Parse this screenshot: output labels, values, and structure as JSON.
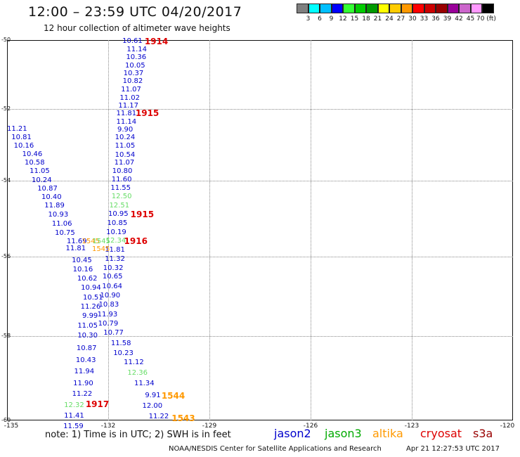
{
  "header": {
    "title": "12:00 – 23:59 UTC 04/20/2017",
    "subtitle": "12 hour collection of altimeter wave heights"
  },
  "colorbar": {
    "colors": [
      "#7f7f7f",
      "#00ffff",
      "#00bfff",
      "#0000ff",
      "#33ff33",
      "#00cc00",
      "#009900",
      "#ffff00",
      "#ffcc00",
      "#ff9900",
      "#ff0000",
      "#cc0000",
      "#990000",
      "#990099",
      "#cc66cc",
      "#ff99ff",
      "#000000"
    ],
    "labels": [
      "3",
      "6",
      "9",
      "12",
      "15",
      "18",
      "21",
      "24",
      "27",
      "30",
      "33",
      "36",
      "39",
      "42",
      "45",
      "70 (ft)"
    ]
  },
  "map": {
    "lat_labels": [
      "-50",
      "-52",
      "-54",
      "-56",
      "-58",
      "-60"
    ],
    "lon_labels": [
      "-135",
      "-132",
      "-129",
      "-126",
      "-123",
      "-120"
    ],
    "observations": [
      {
        "text": "10.61",
        "lon": -131.58,
        "lat": -50.05,
        "color": "#0000cc"
      },
      {
        "text": "11.14",
        "lon": -131.45,
        "lat": -50.3,
        "color": "#0000cc"
      },
      {
        "text": "10.36",
        "lon": -131.47,
        "lat": -50.52,
        "color": "#0000cc"
      },
      {
        "text": "10.05",
        "lon": -131.5,
        "lat": -50.77,
        "color": "#0000cc"
      },
      {
        "text": "10.37",
        "lon": -131.55,
        "lat": -51.0,
        "color": "#0000cc"
      },
      {
        "text": "10.82",
        "lon": -131.57,
        "lat": -51.22,
        "color": "#0000cc"
      },
      {
        "text": "11.07",
        "lon": -131.62,
        "lat": -51.45,
        "color": "#0000cc"
      },
      {
        "text": "11.02",
        "lon": -131.66,
        "lat": -51.69,
        "color": "#0000cc"
      },
      {
        "text": "11.17",
        "lon": -131.7,
        "lat": -51.92,
        "color": "#0000cc"
      },
      {
        "text": "11.81",
        "lon": -131.76,
        "lat": -52.13,
        "color": "#0000cc"
      },
      {
        "text": "11.14",
        "lon": -131.76,
        "lat": -52.37,
        "color": "#0000cc"
      },
      {
        "text": "9.90",
        "lon": -131.73,
        "lat": -52.6,
        "color": "#0000cc"
      },
      {
        "text": "10.24",
        "lon": -131.8,
        "lat": -52.82,
        "color": "#0000cc"
      },
      {
        "text": "11.05",
        "lon": -131.8,
        "lat": -53.05,
        "color": "#0000cc"
      },
      {
        "text": "10.54",
        "lon": -131.8,
        "lat": -53.29,
        "color": "#0000cc"
      },
      {
        "text": "11.07",
        "lon": -131.82,
        "lat": -53.52,
        "color": "#0000cc"
      },
      {
        "text": "10.80",
        "lon": -131.88,
        "lat": -53.75,
        "color": "#0000cc"
      },
      {
        "text": "11.60",
        "lon": -131.9,
        "lat": -53.97,
        "color": "#0000cc"
      },
      {
        "text": "11.55",
        "lon": -131.93,
        "lat": -54.2,
        "color": "#0000cc"
      },
      {
        "text": "12.50",
        "lon": -131.9,
        "lat": -54.43,
        "color": "#66dd66"
      },
      {
        "text": "12.51",
        "lon": -131.97,
        "lat": -54.68,
        "color": "#66dd66"
      },
      {
        "text": "10.95",
        "lon": -132.0,
        "lat": -54.9,
        "color": "#0000cc"
      },
      {
        "text": "10.85",
        "lon": -132.03,
        "lat": -55.13,
        "color": "#0000cc"
      },
      {
        "text": "10.19",
        "lon": -132.06,
        "lat": -55.37,
        "color": "#0000cc"
      },
      {
        "text": "12.34",
        "lon": -132.07,
        "lat": -55.6,
        "color": "#66dd66"
      },
      {
        "text": "11.81",
        "lon": -132.1,
        "lat": -55.84,
        "color": "#0000cc"
      },
      {
        "text": "11.32",
        "lon": -132.1,
        "lat": -56.07,
        "color": "#0000cc"
      },
      {
        "text": "10.32",
        "lon": -132.15,
        "lat": -56.31,
        "color": "#0000cc"
      },
      {
        "text": "10.65",
        "lon": -132.17,
        "lat": -56.53,
        "color": "#0000cc"
      },
      {
        "text": "10.64",
        "lon": -132.18,
        "lat": -56.77,
        "color": "#0000cc"
      },
      {
        "text": "10.90",
        "lon": -132.24,
        "lat": -57.0,
        "color": "#0000cc"
      },
      {
        "text": "10.83",
        "lon": -132.28,
        "lat": -57.23,
        "color": "#0000cc"
      },
      {
        "text": "11.93",
        "lon": -132.32,
        "lat": -57.47,
        "color": "#0000cc"
      },
      {
        "text": "10.79",
        "lon": -132.3,
        "lat": -57.7,
        "color": "#0000cc"
      },
      {
        "text": "10.77",
        "lon": -132.14,
        "lat": -57.93,
        "color": "#0000cc"
      },
      {
        "text": "11.58",
        "lon": -131.92,
        "lat": -58.19,
        "color": "#0000cc"
      },
      {
        "text": "10.23",
        "lon": -131.85,
        "lat": -58.42,
        "color": "#0000cc"
      },
      {
        "text": "11.12",
        "lon": -131.54,
        "lat": -58.65,
        "color": "#0000cc"
      },
      {
        "text": "12.36",
        "lon": -131.43,
        "lat": -58.9,
        "color": "#66dd66"
      },
      {
        "text": "11.34",
        "lon": -131.23,
        "lat": -59.15,
        "color": "#0000cc"
      },
      {
        "text": "9.91",
        "lon": -130.91,
        "lat": -59.43,
        "color": "#0000cc"
      },
      {
        "text": "12.00",
        "lon": -130.99,
        "lat": -59.67,
        "color": "#0000cc"
      },
      {
        "text": "11.22",
        "lon": -130.8,
        "lat": -59.92,
        "color": "#0000cc"
      },
      {
        "text": "11.21",
        "lon": -135.0,
        "lat": -52.58,
        "color": "#0000cc"
      },
      {
        "text": "10.81",
        "lon": -134.87,
        "lat": -52.82,
        "color": "#0000cc"
      },
      {
        "text": "10.16",
        "lon": -134.8,
        "lat": -53.05,
        "color": "#0000cc"
      },
      {
        "text": "10.46",
        "lon": -134.55,
        "lat": -53.28,
        "color": "#0000cc"
      },
      {
        "text": "10.58",
        "lon": -134.48,
        "lat": -53.52,
        "color": "#0000cc"
      },
      {
        "text": "11.05",
        "lon": -134.33,
        "lat": -53.75,
        "color": "#0000cc"
      },
      {
        "text": "10.24",
        "lon": -134.27,
        "lat": -54.0,
        "color": "#0000cc"
      },
      {
        "text": "10.87",
        "lon": -134.1,
        "lat": -54.22,
        "color": "#0000cc"
      },
      {
        "text": "10.40",
        "lon": -133.98,
        "lat": -54.45,
        "color": "#0000cc"
      },
      {
        "text": "11.89",
        "lon": -133.89,
        "lat": -54.68,
        "color": "#0000cc"
      },
      {
        "text": "10.93",
        "lon": -133.78,
        "lat": -54.92,
        "color": "#0000cc"
      },
      {
        "text": "11.06",
        "lon": -133.67,
        "lat": -55.15,
        "color": "#0000cc"
      },
      {
        "text": "10.75",
        "lon": -133.58,
        "lat": -55.39,
        "color": "#0000cc"
      },
      {
        "text": "11.69",
        "lon": -133.23,
        "lat": -55.62,
        "color": "#0000cc"
      },
      {
        "text": "11.81",
        "lon": -133.26,
        "lat": -55.8,
        "color": "#0000cc"
      },
      {
        "text": "10.45",
        "lon": -133.08,
        "lat": -56.1,
        "color": "#0000cc"
      },
      {
        "text": "10.16",
        "lon": -133.05,
        "lat": -56.34,
        "color": "#0000cc"
      },
      {
        "text": "10.62",
        "lon": -132.92,
        "lat": -56.57,
        "color": "#0000cc"
      },
      {
        "text": "10.94",
        "lon": -132.81,
        "lat": -56.81,
        "color": "#0000cc"
      },
      {
        "text": "10.51",
        "lon": -132.75,
        "lat": -57.05,
        "color": "#0000cc"
      },
      {
        "text": "11.26",
        "lon": -132.82,
        "lat": -57.28,
        "color": "#0000cc"
      },
      {
        "text": "9.99",
        "lon": -132.77,
        "lat": -57.51,
        "color": "#0000cc"
      },
      {
        "text": "11.05",
        "lon": -132.91,
        "lat": -57.75,
        "color": "#0000cc"
      },
      {
        "text": "10.30",
        "lon": -132.91,
        "lat": -57.99,
        "color": "#0000cc"
      },
      {
        "text": "10.87",
        "lon": -132.94,
        "lat": -58.31,
        "color": "#0000cc"
      },
      {
        "text": "10.43",
        "lon": -132.96,
        "lat": -58.59,
        "color": "#0000cc"
      },
      {
        "text": "11.94",
        "lon": -133.01,
        "lat": -58.87,
        "color": "#0000cc"
      },
      {
        "text": "11.90",
        "lon": -133.04,
        "lat": -59.15,
        "color": "#0000cc"
      },
      {
        "text": "11.22",
        "lon": -133.07,
        "lat": -59.4,
        "color": "#0000cc"
      },
      {
        "text": "12.32",
        "lon": -133.31,
        "lat": -59.66,
        "color": "#66dd66"
      },
      {
        "text": "11.41",
        "lon": -133.31,
        "lat": -59.91,
        "color": "#0000cc"
      },
      {
        "text": "11.59",
        "lon": -133.33,
        "lat": -60.15,
        "color": "#0000cc"
      },
      {
        "text": "1545",
        "lon": -132.78,
        "lat": -55.61,
        "color": "#ff9900"
      },
      {
        "text": "1545",
        "lon": -132.47,
        "lat": -55.62,
        "color": "#66dd66"
      },
      {
        "text": "1545",
        "lon": -132.48,
        "lat": -55.82,
        "color": "#ff9900"
      }
    ],
    "markers": [
      {
        "text": "1914",
        "lon": -130.92,
        "lat": -50.04,
        "color": "#dd0000"
      },
      {
        "text": "1915",
        "lon": -131.19,
        "lat": -52.12,
        "color": "#dd0000"
      },
      {
        "text": "1915",
        "lon": -131.34,
        "lat": -54.89,
        "color": "#dd0000"
      },
      {
        "text": "1916",
        "lon": -131.53,
        "lat": -55.6,
        "color": "#dd0000"
      },
      {
        "text": "1917",
        "lon": -132.67,
        "lat": -59.63,
        "color": "#dd0000"
      },
      {
        "text": "1544",
        "lon": -130.42,
        "lat": -59.42,
        "color": "#ff9900"
      },
      {
        "text": "1543",
        "lon": -130.12,
        "lat": -59.95,
        "color": "#ff9900"
      }
    ]
  },
  "footer": {
    "note": "note: 1) Time is in UTC; 2) SWH is in feet",
    "legend": [
      {
        "text": "jason2",
        "color": "#0000cc"
      },
      {
        "text": "jason3",
        "color": "#00aa00"
      },
      {
        "text": "altika",
        "color": "#ff9900"
      },
      {
        "text": "cryosat",
        "color": "#dd0000"
      },
      {
        "text": "s3a",
        "color": "#990000"
      }
    ],
    "credit": "NOAA/NESDIS Center for Satellite Applications and Research",
    "timestamp": "Apr 21 12:27:53 UTC 2017"
  }
}
